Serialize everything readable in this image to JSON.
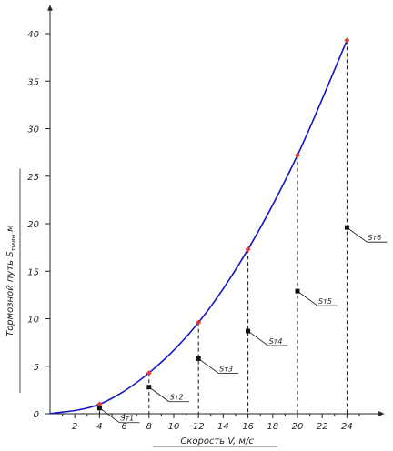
{
  "chart_data": {
    "type": "line",
    "xlabel": "Скорость V, м/с",
    "ylabel": "Тормозной путь S",
    "ylabel_sub": "тмин",
    "ylabel_unit": "м",
    "xlim": [
      0,
      27
    ],
    "ylim": [
      0,
      43
    ],
    "x_ticks": [
      2,
      4,
      6,
      8,
      10,
      12,
      14,
      16,
      18,
      20,
      22,
      24
    ],
    "y_ticks": [
      0,
      5,
      10,
      15,
      20,
      25,
      30,
      35,
      40
    ],
    "grid": false,
    "series": [
      {
        "color": "#1515c8",
        "x": [
          0,
          4,
          8,
          12,
          16,
          20,
          24
        ],
        "values": [
          0,
          1.0,
          4.3,
          9.6,
          17.3,
          27.2,
          39.3
        ]
      }
    ],
    "marker_color": "#e23b3b",
    "projection_line_color": "#111111",
    "components": [
      {
        "label": "Sт1",
        "x": 4,
        "y": 0.6
      },
      {
        "label": "Sт2",
        "x": 8,
        "y": 2.8
      },
      {
        "label": "Sт3",
        "x": 12,
        "y": 5.8
      },
      {
        "label": "Sт4",
        "x": 16,
        "y": 8.7
      },
      {
        "label": "Sт5",
        "x": 20,
        "y": 12.9
      },
      {
        "label": "Sт6",
        "x": 24,
        "y": 19.6
      }
    ]
  }
}
